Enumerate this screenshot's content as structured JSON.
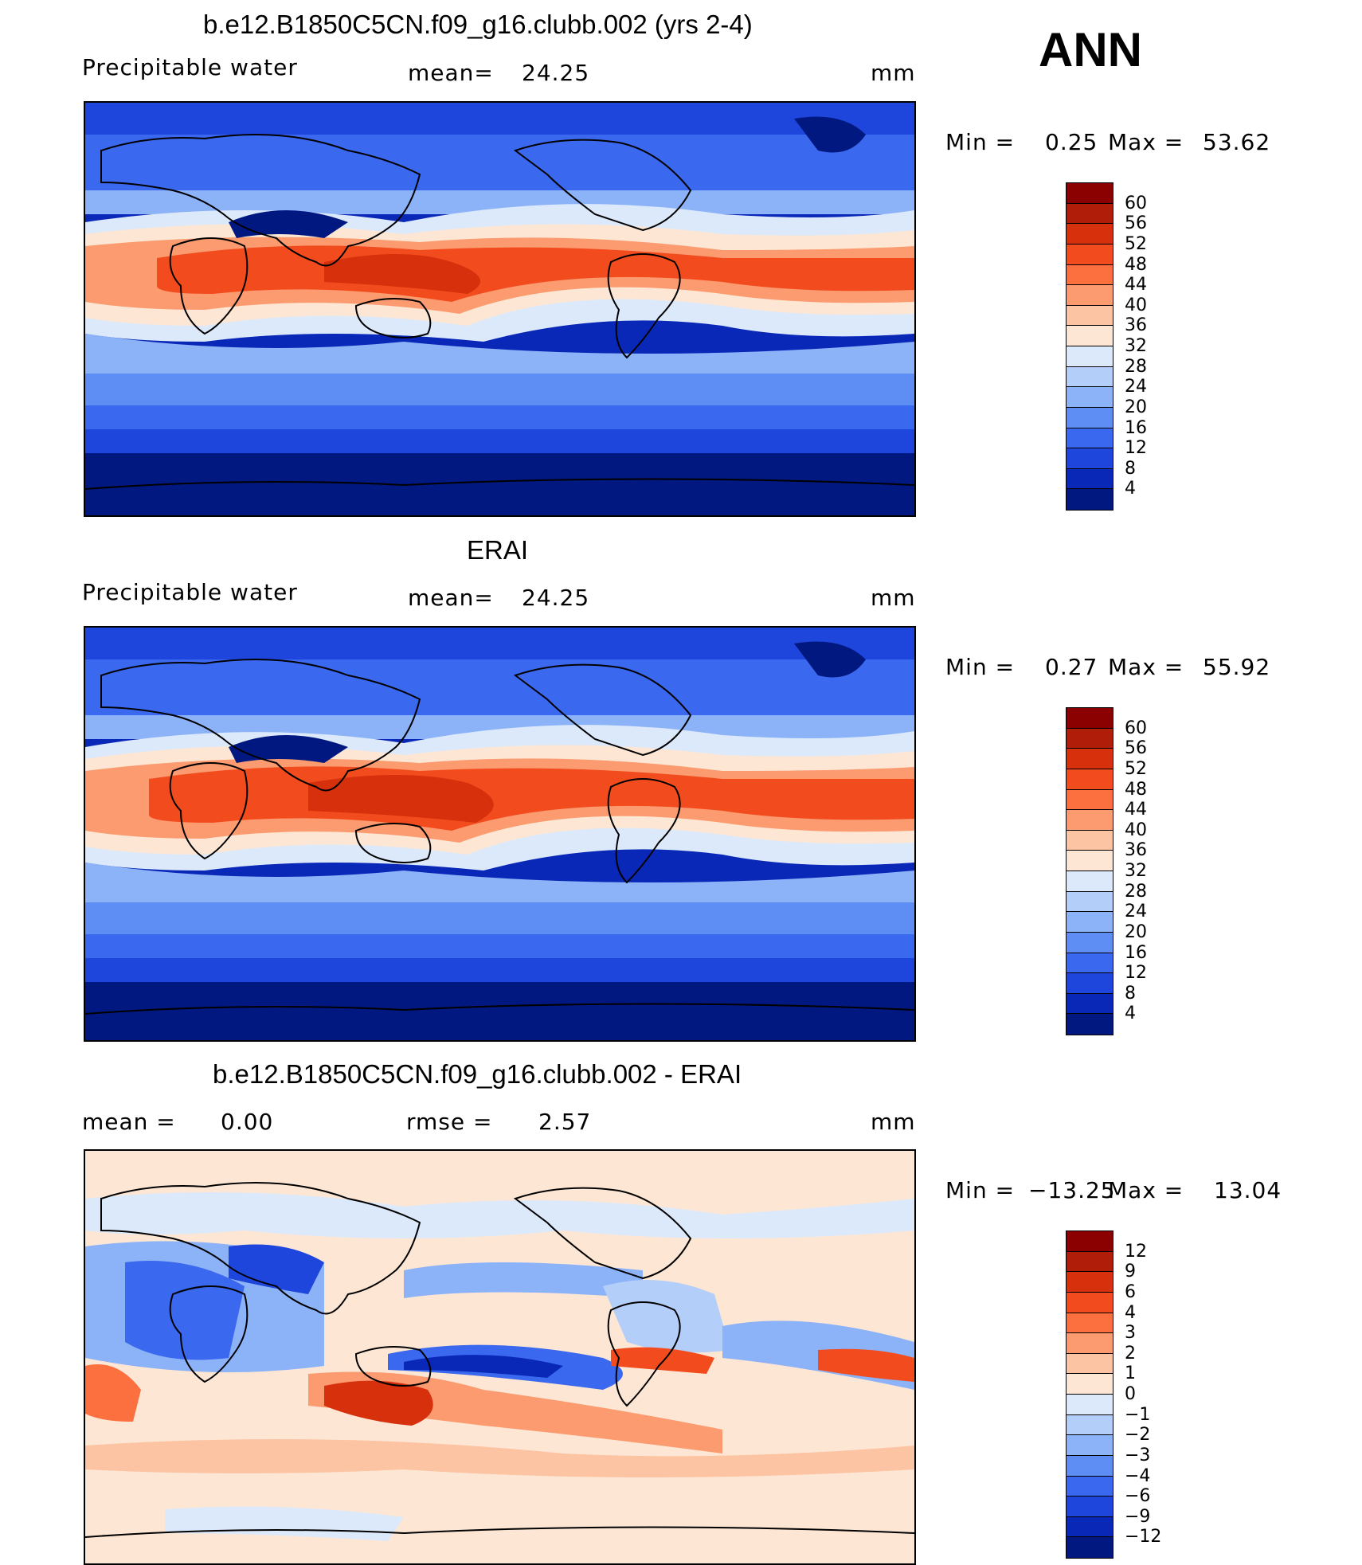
{
  "season": "ANN",
  "panels": [
    {
      "title": "b.e12.B1850C5CN.f09_g16.clubb.002 (yrs 2-4)",
      "variable": "Precipitable water",
      "stat1_label": "mean=",
      "stat1_value": "24.25",
      "stat2_label": "",
      "stat2_value": "",
      "units": "mm",
      "min_label": "Min =",
      "min_value": "0.25",
      "max_label": "Max =",
      "max_value": "53.62",
      "colorbar_labels": [
        "60",
        "56",
        "52",
        "48",
        "44",
        "40",
        "36",
        "32",
        "28",
        "24",
        "20",
        "16",
        "12",
        "8",
        "4"
      ],
      "colorbar_colors": [
        "#8b0000",
        "#b01e0a",
        "#d6300c",
        "#f24c1e",
        "#fc7040",
        "#fc9a70",
        "#fdc4a4",
        "#fde7d4",
        "#dce9fb",
        "#b4cefa",
        "#8cb2f8",
        "#5e8df4",
        "#3a68ee",
        "#1e46dc",
        "#0a28b8",
        "#001880"
      ]
    },
    {
      "title": "ERAI",
      "variable": "Precipitable water",
      "stat1_label": "mean=",
      "stat1_value": "24.25",
      "stat2_label": "",
      "stat2_value": "",
      "units": "mm",
      "min_label": "Min =",
      "min_value": "0.27",
      "max_label": "Max =",
      "max_value": "55.92",
      "colorbar_labels": [
        "60",
        "56",
        "52",
        "48",
        "44",
        "40",
        "36",
        "32",
        "28",
        "24",
        "20",
        "16",
        "12",
        "8",
        "4"
      ],
      "colorbar_colors": [
        "#8b0000",
        "#b01e0a",
        "#d6300c",
        "#f24c1e",
        "#fc7040",
        "#fc9a70",
        "#fdc4a4",
        "#fde7d4",
        "#dce9fb",
        "#b4cefa",
        "#8cb2f8",
        "#5e8df4",
        "#3a68ee",
        "#1e46dc",
        "#0a28b8",
        "#001880"
      ]
    },
    {
      "title": "b.e12.B1850C5CN.f09_g16.clubb.002 - ERAI",
      "variable": "",
      "stat1_label": "mean =",
      "stat1_value": "0.00",
      "stat2_label": "rmse =",
      "stat2_value": "2.57",
      "units": "mm",
      "min_label": "Min =",
      "min_value": "−13.25",
      "max_label": "Max =",
      "max_value": "13.04",
      "colorbar_labels": [
        "12",
        "9",
        "6",
        "4",
        "3",
        "2",
        "1",
        "0",
        "−1",
        "−2",
        "−3",
        "−4",
        "−6",
        "−9",
        "−12"
      ],
      "colorbar_colors": [
        "#8b0000",
        "#b01e0a",
        "#d6300c",
        "#f24c1e",
        "#fc7040",
        "#fc9a70",
        "#fdc4a4",
        "#fde7d4",
        "#dce9fb",
        "#b4cefa",
        "#8cb2f8",
        "#5e8df4",
        "#3a68ee",
        "#1e46dc",
        "#0a28b8",
        "#001880"
      ]
    }
  ]
}
